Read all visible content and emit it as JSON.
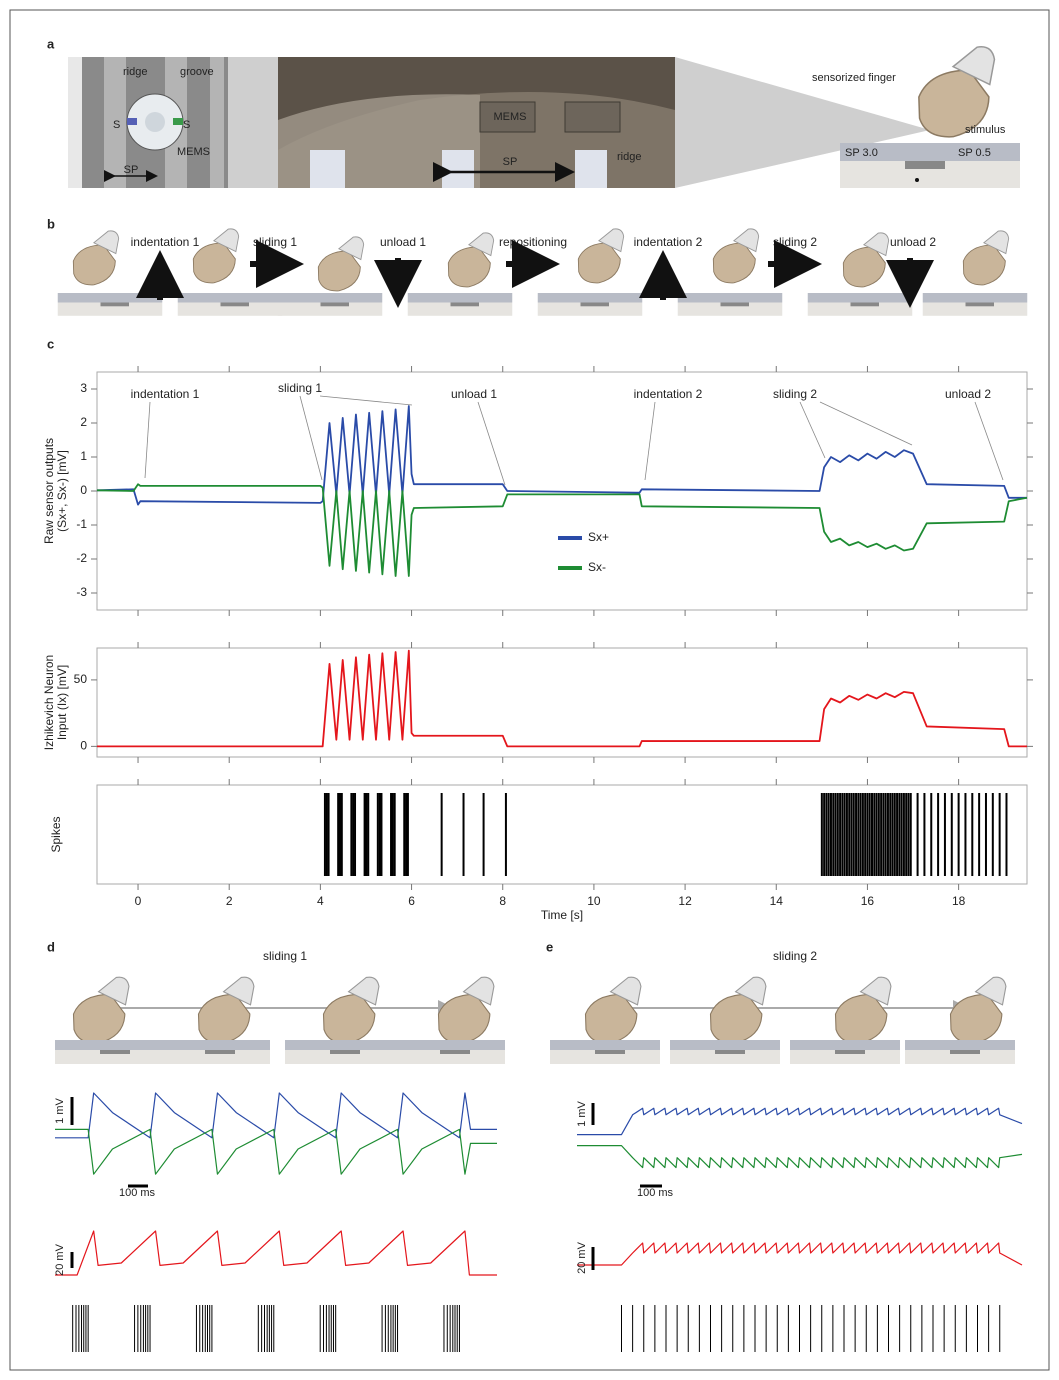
{
  "panel_a": {
    "label": "a",
    "texts": [
      "ridge",
      "groove",
      "S",
      "S",
      "MEMS",
      "SP",
      "MEMS",
      "SP",
      "ridge",
      "sensorized finger",
      "stimulus",
      "SP 3.0",
      "SP 0.5"
    ]
  },
  "panel_b": {
    "label": "b",
    "steps": [
      "indentation 1",
      "sliding 1",
      "unload 1",
      "repositioning",
      "indentation 2",
      "sliding 2",
      "unload 2"
    ]
  },
  "panel_c": {
    "label": "c"
  },
  "chart_data": [
    {
      "type": "line",
      "ylabel": [
        "Raw sensor outputs",
        "(Sx+, Sx-) [mV]"
      ],
      "xlim": [
        -0.9,
        19.5
      ],
      "ylim": [
        -3.5,
        3.5
      ],
      "xticks": [
        0,
        2,
        4,
        6,
        8,
        10,
        12,
        14,
        16,
        18
      ],
      "yticks": [
        -3,
        -2,
        -1,
        0,
        1,
        2,
        3
      ],
      "annotations": [
        "indentation 1",
        "sliding 1",
        "unload 1",
        "indentation 2",
        "sliding 2",
        "unload 2"
      ],
      "series": [
        {
          "name": "Sx+",
          "color": "#2a4ba8",
          "x": [
            -0.9,
            -0.1,
            0,
            0.05,
            4.0,
            4.05,
            4.2,
            4.35,
            4.49,
            4.64,
            4.78,
            4.93,
            5.07,
            5.22,
            5.36,
            5.51,
            5.65,
            5.8,
            5.94,
            6.0,
            6.05,
            8.0,
            8.1,
            11.0,
            11.05,
            14.95,
            15.05,
            15.2,
            15.4,
            15.6,
            15.8,
            16.0,
            16.2,
            16.4,
            16.6,
            16.8,
            17.0,
            17.3,
            19.0,
            19.1,
            19.5
          ],
          "values": [
            0.02,
            0.05,
            -0.4,
            -0.3,
            -0.35,
            -0.3,
            2.0,
            -0.1,
            2.15,
            -0.1,
            2.25,
            -0.1,
            2.3,
            -0.1,
            2.35,
            -0.1,
            2.4,
            -0.1,
            2.5,
            0.5,
            0.2,
            0.2,
            0.0,
            -0.05,
            0.05,
            0.0,
            0.7,
            1.0,
            0.85,
            1.05,
            0.9,
            1.1,
            0.95,
            1.15,
            1.0,
            1.2,
            1.1,
            0.2,
            0.15,
            -0.2,
            -0.2
          ]
        },
        {
          "name": "Sx-",
          "color": "#1e8c33",
          "x": [
            -0.9,
            -0.1,
            0,
            0.05,
            4.0,
            4.05,
            4.2,
            4.35,
            4.49,
            4.64,
            4.78,
            4.93,
            5.07,
            5.22,
            5.36,
            5.51,
            5.65,
            5.8,
            5.94,
            6.0,
            6.05,
            8.0,
            8.1,
            11.0,
            11.05,
            14.95,
            15.05,
            15.2,
            15.4,
            15.6,
            15.8,
            16.0,
            16.2,
            16.4,
            16.6,
            16.8,
            17.0,
            17.3,
            19.0,
            19.1,
            19.5
          ],
          "values": [
            0.02,
            0.0,
            0.2,
            0.15,
            0.15,
            0.1,
            -2.2,
            0.0,
            -2.3,
            0.0,
            -2.35,
            0.0,
            -2.4,
            0.0,
            -2.45,
            0.0,
            -2.5,
            0.0,
            -2.5,
            -0.7,
            -0.5,
            -0.45,
            -0.1,
            -0.1,
            -0.45,
            -0.5,
            -1.2,
            -1.5,
            -1.4,
            -1.6,
            -1.5,
            -1.65,
            -1.55,
            -1.7,
            -1.6,
            -1.75,
            -1.7,
            -0.95,
            -0.9,
            -0.3,
            -0.2
          ]
        }
      ]
    },
    {
      "type": "line",
      "ylabel": [
        "Izhikevich Neuron",
        "Input (Ix) [mV]"
      ],
      "xlim": [
        -0.9,
        19.5
      ],
      "ylim": [
        -8,
        74
      ],
      "xticks": [
        0,
        2,
        4,
        6,
        8,
        10,
        12,
        14,
        16,
        18
      ],
      "yticks": [
        0,
        50
      ],
      "series": [
        {
          "color": "#e4161c",
          "x": [
            -0.9,
            -0.1,
            0,
            0.05,
            4.0,
            4.05,
            4.2,
            4.35,
            4.49,
            4.64,
            4.78,
            4.93,
            5.07,
            5.22,
            5.36,
            5.51,
            5.65,
            5.8,
            5.94,
            6.0,
            6.05,
            8.0,
            8.1,
            11.0,
            11.05,
            14.95,
            15.05,
            15.2,
            15.4,
            15.6,
            15.8,
            16.0,
            16.2,
            16.4,
            16.6,
            16.8,
            17.0,
            17.3,
            19.0,
            19.1,
            19.5
          ],
          "values": [
            0,
            0,
            0,
            0,
            0,
            0,
            62,
            5,
            65,
            5,
            67,
            5,
            69,
            5,
            70,
            5,
            71,
            5,
            72,
            10,
            8,
            8,
            0,
            0,
            4,
            4,
            28,
            36,
            33,
            38,
            35,
            39,
            36,
            40,
            37,
            41,
            40,
            15,
            13,
            0,
            0
          ]
        }
      ]
    },
    {
      "type": "raster",
      "ylabel": "Spikes",
      "xlabel": "Time [s]",
      "xlim": [
        -0.9,
        19.5
      ],
      "xticks": [
        0,
        2,
        4,
        6,
        8,
        10,
        12,
        14,
        16,
        18
      ],
      "spikes": [
        4.1,
        4.14,
        4.18,
        4.39,
        4.43,
        4.47,
        4.68,
        4.72,
        4.76,
        4.97,
        5.01,
        5.05,
        5.26,
        5.3,
        5.34,
        5.55,
        5.59,
        5.63,
        5.84,
        5.88,
        5.92,
        6.66,
        7.14,
        7.58,
        8.07,
        15.0,
        15.05,
        15.1,
        15.15,
        15.2,
        15.25,
        15.3,
        15.35,
        15.4,
        15.45,
        15.5,
        15.55,
        15.6,
        15.65,
        15.7,
        15.75,
        15.8,
        15.85,
        15.9,
        15.95,
        16.0,
        16.05,
        16.1,
        16.15,
        16.2,
        16.25,
        16.3,
        16.35,
        16.4,
        16.45,
        16.5,
        16.55,
        16.6,
        16.65,
        16.7,
        16.75,
        16.8,
        16.85,
        16.9,
        16.95,
        17.1,
        17.25,
        17.4,
        17.55,
        17.7,
        17.85,
        18.0,
        18.15,
        18.3,
        18.45,
        18.6,
        18.75,
        18.9,
        19.05
      ]
    }
  ],
  "panel_d": {
    "label": "d",
    "title": "sliding 1",
    "scale_bars": [
      "1 mV",
      "100 ms",
      "20 mV"
    ],
    "xlim": [
      0,
      2000
    ],
    "series": [
      {
        "color": "#2a4ba8",
        "x": [
          0,
          150,
          175,
          260,
          430,
          455,
          540,
          710,
          735,
          820,
          990,
          1015,
          1100,
          1270,
          1295,
          1380,
          1550,
          1575,
          1660,
          1830,
          1855,
          1880,
          2000
        ],
        "values": [
          -0.6,
          -0.6,
          1.0,
          0.3,
          -0.6,
          1.0,
          0.3,
          -0.6,
          1.0,
          0.3,
          -0.6,
          1.0,
          0.3,
          -0.6,
          1.0,
          0.3,
          -0.6,
          1.0,
          0.3,
          -0.6,
          1.0,
          -0.3,
          -0.3
        ]
      },
      {
        "color": "#1e8c33",
        "x": [
          0,
          150,
          175,
          260,
          430,
          455,
          540,
          710,
          735,
          820,
          990,
          1015,
          1100,
          1270,
          1295,
          1380,
          1550,
          1575,
          1660,
          1830,
          1855,
          1880,
          2000
        ],
        "values": [
          -0.3,
          -0.3,
          -1.9,
          -1.0,
          -0.3,
          -1.9,
          -1.0,
          -0.3,
          -1.9,
          -1.0,
          -0.3,
          -1.9,
          -1.0,
          -0.3,
          -1.9,
          -1.0,
          -0.3,
          -1.9,
          -1.0,
          -0.3,
          -1.9,
          -0.8,
          -0.8
        ]
      },
      {
        "color": "#e4161c",
        "x": [
          0,
          100,
          175,
          195,
          300,
          455,
          475,
          580,
          735,
          755,
          860,
          1015,
          1035,
          1140,
          1295,
          1315,
          1420,
          1575,
          1595,
          1700,
          1855,
          1875,
          2000
        ],
        "values": [
          0,
          0,
          55,
          12,
          15,
          55,
          12,
          15,
          55,
          12,
          15,
          55,
          12,
          15,
          55,
          12,
          15,
          55,
          12,
          15,
          55,
          0,
          0
        ]
      }
    ],
    "spikes": [
      80,
      95,
      108,
      120,
      130,
      140,
      150,
      360,
      375,
      388,
      400,
      410,
      420,
      430,
      640,
      655,
      668,
      680,
      690,
      700,
      710,
      920,
      935,
      948,
      960,
      970,
      980,
      990,
      1200,
      1215,
      1228,
      1240,
      1250,
      1260,
      1270,
      1480,
      1495,
      1508,
      1520,
      1530,
      1540,
      1550,
      1760,
      1775,
      1788,
      1800,
      1810,
      1820,
      1830
    ]
  },
  "panel_e": {
    "label": "e",
    "title": "sliding 2",
    "scale_bars": [
      "1 mV",
      "100 ms",
      "20 mV"
    ],
    "xlim": [
      0,
      2000
    ],
    "x": [
      0,
      200,
      250,
      295,
      300,
      345,
      350,
      395,
      400,
      445,
      450,
      495,
      500,
      545,
      550,
      595,
      600,
      645,
      650,
      695,
      700,
      745,
      750,
      795,
      800,
      845,
      850,
      895,
      900,
      945,
      950,
      995,
      1000,
      1045,
      1050,
      1095,
      1100,
      1145,
      1150,
      1195,
      1200,
      1245,
      1250,
      1295,
      1300,
      1345,
      1350,
      1395,
      1400,
      1445,
      1450,
      1495,
      1500,
      1545,
      1550,
      1595,
      1600,
      1645,
      1650,
      1695,
      1700,
      1745,
      1750,
      1795,
      1800,
      1845,
      1850,
      1895,
      1900,
      2000
    ],
    "series": [
      {
        "color": "#2a4ba8",
        "values": [
          -0.3,
          -0.3,
          0.6,
          0.9,
          0.6,
          0.9,
          0.6,
          0.9,
          0.6,
          0.9,
          0.6,
          0.9,
          0.6,
          0.9,
          0.6,
          0.9,
          0.6,
          0.9,
          0.6,
          0.9,
          0.6,
          0.9,
          0.6,
          0.9,
          0.6,
          0.9,
          0.6,
          0.9,
          0.6,
          0.9,
          0.6,
          0.9,
          0.6,
          0.9,
          0.6,
          0.9,
          0.6,
          0.9,
          0.6,
          0.9,
          0.6,
          0.9,
          0.6,
          0.9,
          0.6,
          0.9,
          0.6,
          0.9,
          0.6,
          0.9,
          0.6,
          0.9,
          0.6,
          0.9,
          0.6,
          0.9,
          0.6,
          0.9,
          0.6,
          0.9,
          0.6,
          0.9,
          0.6,
          0.9,
          0.6,
          0.9,
          0.6,
          0.9,
          0.6,
          0.2
        ]
      },
      {
        "color": "#1e8c33",
        "values": [
          -0.8,
          -0.8,
          -1.35,
          -1.8,
          -1.35,
          -1.8,
          -1.35,
          -1.8,
          -1.35,
          -1.8,
          -1.35,
          -1.8,
          -1.35,
          -1.8,
          -1.35,
          -1.8,
          -1.35,
          -1.8,
          -1.35,
          -1.8,
          -1.35,
          -1.8,
          -1.35,
          -1.8,
          -1.35,
          -1.8,
          -1.35,
          -1.8,
          -1.35,
          -1.8,
          -1.35,
          -1.8,
          -1.35,
          -1.8,
          -1.35,
          -1.8,
          -1.35,
          -1.8,
          -1.35,
          -1.8,
          -1.35,
          -1.8,
          -1.35,
          -1.8,
          -1.35,
          -1.8,
          -1.35,
          -1.8,
          -1.35,
          -1.8,
          -1.35,
          -1.8,
          -1.35,
          -1.8,
          -1.35,
          -1.8,
          -1.35,
          -1.8,
          -1.35,
          -1.8,
          -1.35,
          -1.8,
          -1.35,
          -1.8,
          -1.35,
          -1.8,
          -1.35,
          -1.8,
          -1.35,
          -1.2
        ]
      },
      {
        "color": "#e4161c",
        "values": [
          0,
          0,
          12,
          22,
          12,
          22,
          12,
          22,
          12,
          22,
          12,
          22,
          12,
          22,
          12,
          22,
          12,
          22,
          12,
          22,
          12,
          22,
          12,
          22,
          12,
          22,
          12,
          22,
          12,
          22,
          12,
          22,
          12,
          22,
          12,
          22,
          12,
          22,
          12,
          22,
          12,
          22,
          12,
          22,
          12,
          22,
          12,
          22,
          12,
          22,
          12,
          22,
          12,
          22,
          12,
          22,
          12,
          22,
          12,
          22,
          12,
          22,
          12,
          22,
          12,
          22,
          12,
          22,
          12,
          0
        ]
      }
    ],
    "spikes": [
      200,
      250,
      300,
      350,
      400,
      450,
      500,
      550,
      600,
      650,
      700,
      750,
      800,
      850,
      900,
      950,
      1000,
      1050,
      1100,
      1150,
      1200,
      1250,
      1300,
      1350,
      1400,
      1450,
      1500,
      1550,
      1600,
      1650,
      1700,
      1750,
      1800,
      1850,
      1900
    ]
  }
}
